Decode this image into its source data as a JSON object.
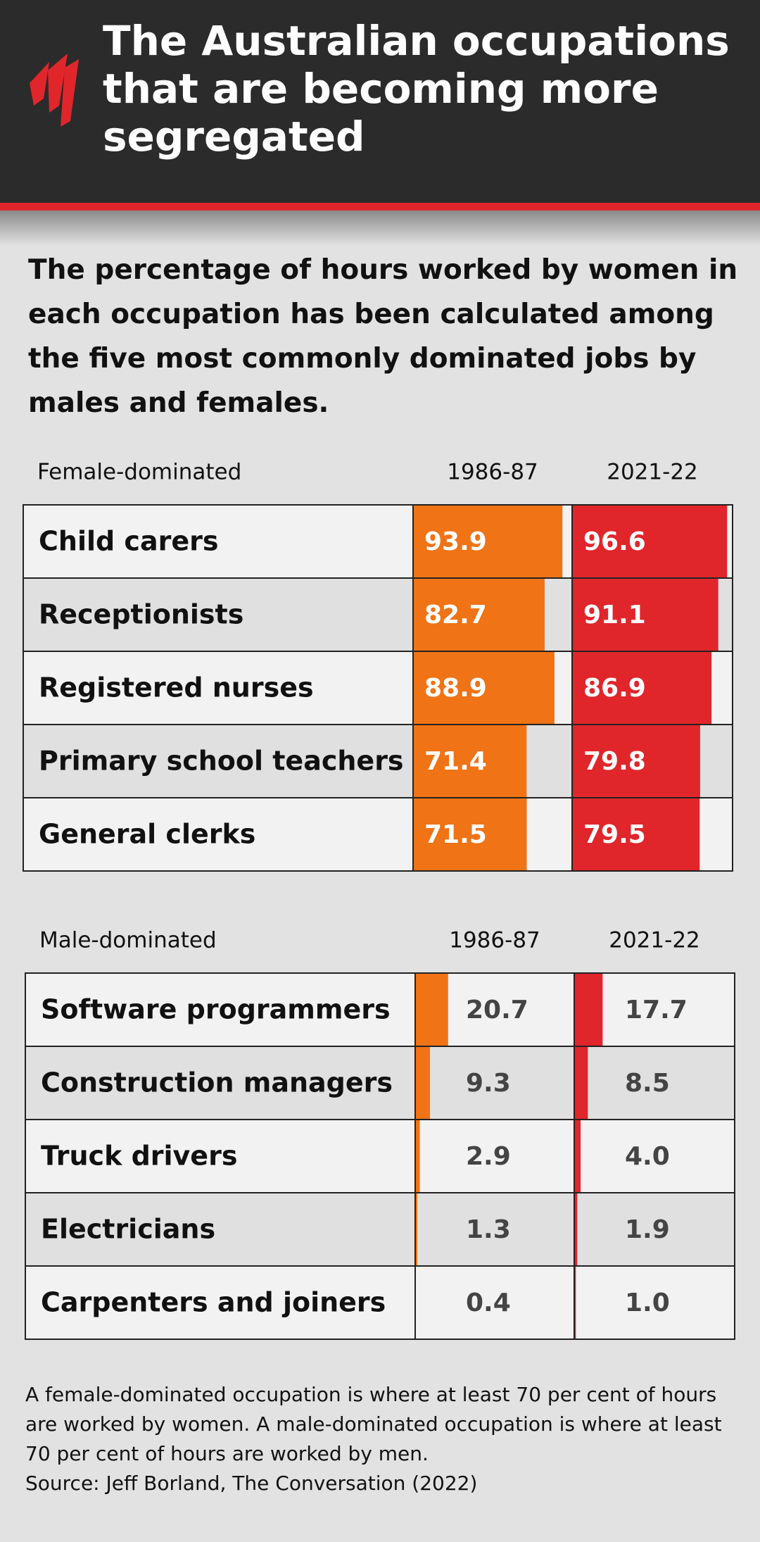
{
  "header": {
    "title": "The Australian occupations that are becoming more segregated",
    "subtitle": "The percentage of hours worked by women in each occupation has been calculated among the five most commonly dominated jobs by males and females."
  },
  "chart_data": [
    {
      "type": "bar",
      "title": "Female-dominated",
      "categories": [
        "Child carers",
        "Receptionists",
        "Registered nurses",
        "Primary school teachers",
        "General clerks"
      ],
      "series": [
        {
          "name": "1986-87",
          "color": "#f07316",
          "values": [
            93.9,
            82.7,
            88.9,
            71.4,
            71.5
          ],
          "value_labels": [
            "93.9",
            "82.7",
            "88.9",
            "71.4",
            "71.5"
          ]
        },
        {
          "name": "2021-22",
          "color": "#e0262b",
          "values": [
            96.6,
            91.1,
            86.9,
            79.8,
            79.5
          ],
          "value_labels": [
            "96.6",
            "91.1",
            "86.9",
            "79.8",
            "79.5"
          ]
        }
      ],
      "ylim": [
        0,
        100
      ]
    },
    {
      "type": "bar",
      "title": "Male-dominated",
      "categories": [
        "Software programmers",
        "Construction managers",
        "Truck drivers",
        "Electricians",
        "Carpenters and joiners"
      ],
      "series": [
        {
          "name": "1986-87",
          "color": "#f07316",
          "values": [
            20.7,
            9.3,
            2.9,
            1.3,
            0.4
          ],
          "value_labels": [
            "20.7",
            "9.3",
            "2.9",
            "1.3",
            "0.4"
          ]
        },
        {
          "name": "2021-22",
          "color": "#e0262b",
          "values": [
            17.7,
            8.5,
            4,
            1.9,
            1
          ],
          "value_labels": [
            "17.7",
            "8.5",
            "4.0",
            "1.9",
            "1.0"
          ]
        }
      ],
      "ylim": [
        0,
        100
      ]
    }
  ],
  "footer": {
    "note": "A female-dominated occupation is where at least 70 per cent of hours are worked by women. A male-dominated occupation is where at least 70 per cent of hours are worked by men.",
    "source": "Source: Jeff Borland, The Conversation (2022)"
  }
}
